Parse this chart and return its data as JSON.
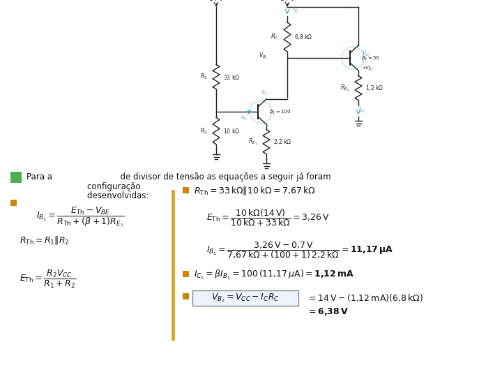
{
  "bg_color": "#ffffff",
  "green_box_color": "#4CAF50",
  "dark_orange_box_color": "#c8860a",
  "dashed_line_color": "#DAA520",
  "wire_color": "#222222",
  "blue_color": "#4499cc",
  "title_text": "Para a                          de divisor de tensão as equações a seguir já foram",
  "subtitle1": "        configuração",
  "subtitle2": "        desenvolvidas:"
}
